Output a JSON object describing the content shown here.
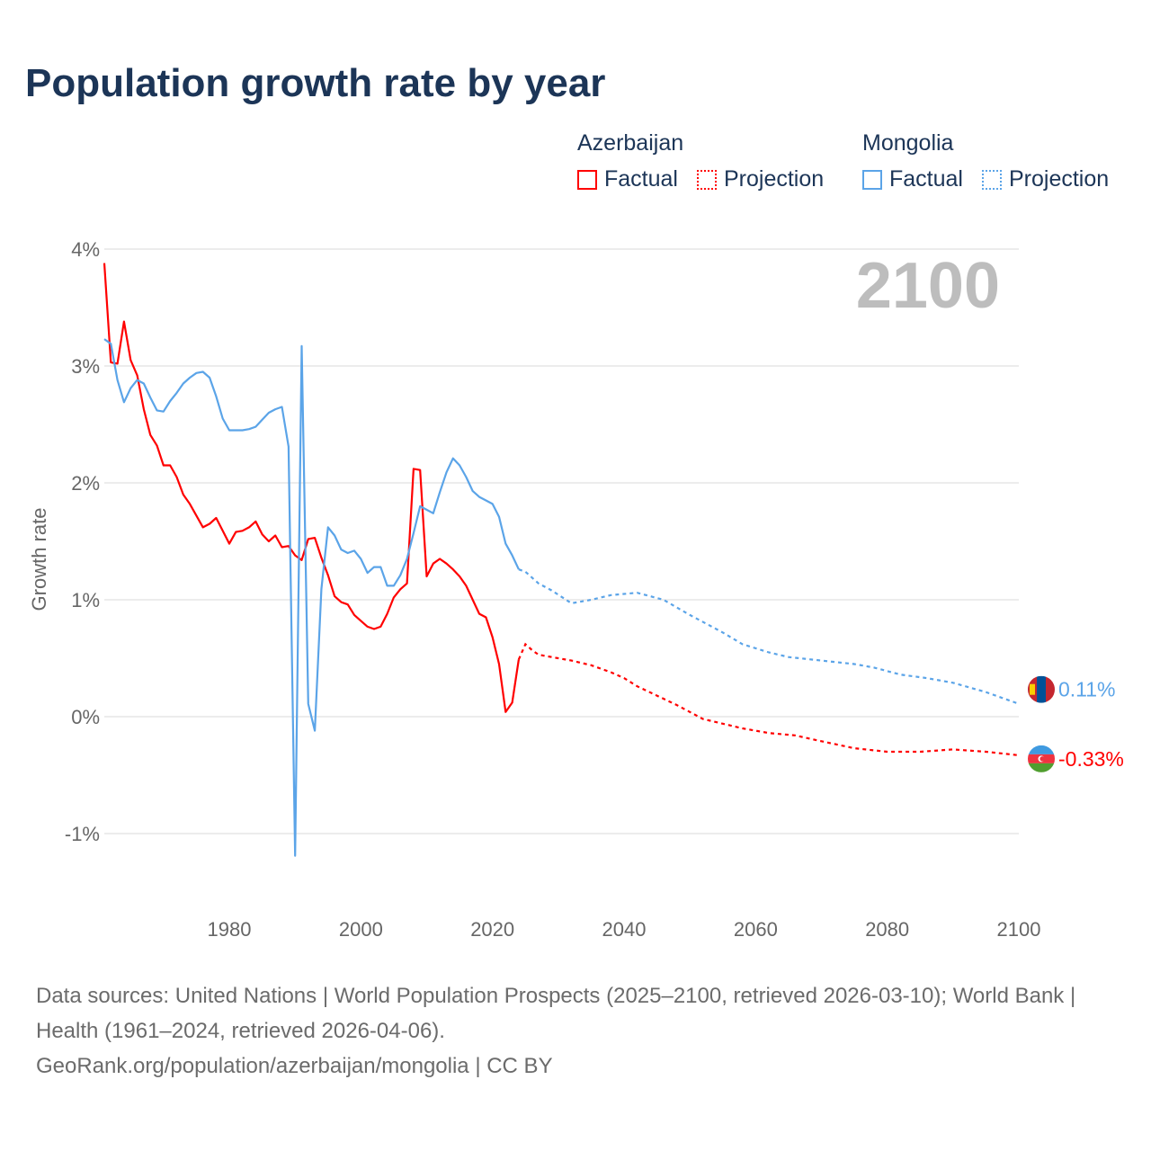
{
  "title": "Population growth rate by year",
  "legend": {
    "groups": [
      {
        "country": "Azerbaijan",
        "factual": "Factual",
        "projection": "Projection",
        "color": "#ff0000"
      },
      {
        "country": "Mongolia",
        "factual": "Factual",
        "projection": "Projection",
        "color": "#5ba4e8"
      }
    ]
  },
  "footer": {
    "sources": "Data sources: United Nations | World Population Prospects (2025–2100, retrieved 2026-03-10); World Bank | Health (1961–2024, retrieved 2026-04-06).",
    "link": "GeoRank.org/population/azerbaijan/mongolia | CC BY"
  },
  "chart_data": {
    "type": "line",
    "title": "Population growth rate by year",
    "ylabel": "Growth rate",
    "xlabel": "",
    "year_overlay": "2100",
    "xlim": [
      1961,
      2100
    ],
    "ylim": [
      -1.4,
      4
    ],
    "x_ticks": [
      1980,
      2000,
      2020,
      2040,
      2060,
      2080,
      2100
    ],
    "y_ticks": [
      {
        "v": 4,
        "label": "4%"
      },
      {
        "v": 3,
        "label": "3%"
      },
      {
        "v": 2,
        "label": "2%"
      },
      {
        "v": 1,
        "label": "1%"
      },
      {
        "v": 0,
        "label": "0%"
      },
      {
        "v": -1,
        "label": "-1%"
      }
    ],
    "series": [
      {
        "name": "Azerbaijan",
        "color": "#ff0000",
        "end_label": "-0.33%",
        "factual_start": 1961,
        "factual": [
          3.88,
          3.03,
          3.02,
          3.38,
          3.05,
          2.92,
          2.63,
          2.41,
          2.32,
          2.15,
          2.15,
          2.05,
          1.9,
          1.82,
          1.72,
          1.62,
          1.65,
          1.7,
          1.59,
          1.48,
          1.58,
          1.59,
          1.62,
          1.67,
          1.56,
          1.5,
          1.55,
          1.45,
          1.46,
          1.38,
          1.34,
          1.52,
          1.53,
          1.36,
          1.21,
          1.03,
          0.98,
          0.96,
          0.87,
          0.82,
          0.77,
          0.75,
          0.77,
          0.88,
          1.02,
          1.09,
          1.14,
          2.12,
          2.11,
          1.2,
          1.31,
          1.35,
          1.31,
          1.26,
          1.2,
          1.12,
          1.0,
          0.88,
          0.85,
          0.68,
          0.45,
          0.04,
          0.12,
          0.49
        ],
        "projection": [
          [
            2024,
            0.49
          ],
          [
            2025,
            0.62
          ],
          [
            2026,
            0.57
          ],
          [
            2027,
            0.53
          ],
          [
            2030,
            0.5
          ],
          [
            2032,
            0.48
          ],
          [
            2035,
            0.44
          ],
          [
            2038,
            0.38
          ],
          [
            2040,
            0.33
          ],
          [
            2042,
            0.26
          ],
          [
            2045,
            0.18
          ],
          [
            2048,
            0.1
          ],
          [
            2050,
            0.04
          ],
          [
            2052,
            -0.02
          ],
          [
            2055,
            -0.06
          ],
          [
            2058,
            -0.1
          ],
          [
            2062,
            -0.14
          ],
          [
            2066,
            -0.16
          ],
          [
            2070,
            -0.21
          ],
          [
            2075,
            -0.27
          ],
          [
            2080,
            -0.3
          ],
          [
            2085,
            -0.3
          ],
          [
            2090,
            -0.28
          ],
          [
            2095,
            -0.3
          ],
          [
            2100,
            -0.33
          ]
        ]
      },
      {
        "name": "Mongolia",
        "color": "#5ba4e8",
        "end_label": "0.11%",
        "factual_start": 1961,
        "factual": [
          3.23,
          3.19,
          2.88,
          2.69,
          2.81,
          2.88,
          2.85,
          2.73,
          2.62,
          2.61,
          2.7,
          2.77,
          2.85,
          2.9,
          2.94,
          2.95,
          2.9,
          2.74,
          2.55,
          2.45,
          2.45,
          2.45,
          2.46,
          2.48,
          2.54,
          2.6,
          2.63,
          2.65,
          2.31,
          -1.19,
          3.17,
          0.11,
          -0.12,
          1.09,
          1.62,
          1.55,
          1.43,
          1.4,
          1.42,
          1.35,
          1.23,
          1.28,
          1.28,
          1.12,
          1.12,
          1.21,
          1.35,
          1.57,
          1.8,
          1.77,
          1.74,
          1.92,
          2.09,
          2.21,
          2.15,
          2.05,
          1.93,
          1.88,
          1.85,
          1.82,
          1.71,
          1.48,
          1.38,
          1.26
        ],
        "projection": [
          [
            2024,
            1.26
          ],
          [
            2025,
            1.24
          ],
          [
            2027,
            1.14
          ],
          [
            2029,
            1.08
          ],
          [
            2032,
            0.97
          ],
          [
            2035,
            1.0
          ],
          [
            2038,
            1.04
          ],
          [
            2042,
            1.06
          ],
          [
            2046,
            1.0
          ],
          [
            2050,
            0.87
          ],
          [
            2055,
            0.72
          ],
          [
            2058,
            0.62
          ],
          [
            2062,
            0.55
          ],
          [
            2065,
            0.51
          ],
          [
            2070,
            0.48
          ],
          [
            2075,
            0.45
          ],
          [
            2078,
            0.42
          ],
          [
            2082,
            0.36
          ],
          [
            2086,
            0.33
          ],
          [
            2090,
            0.29
          ],
          [
            2095,
            0.21
          ],
          [
            2100,
            0.11
          ]
        ]
      }
    ]
  }
}
